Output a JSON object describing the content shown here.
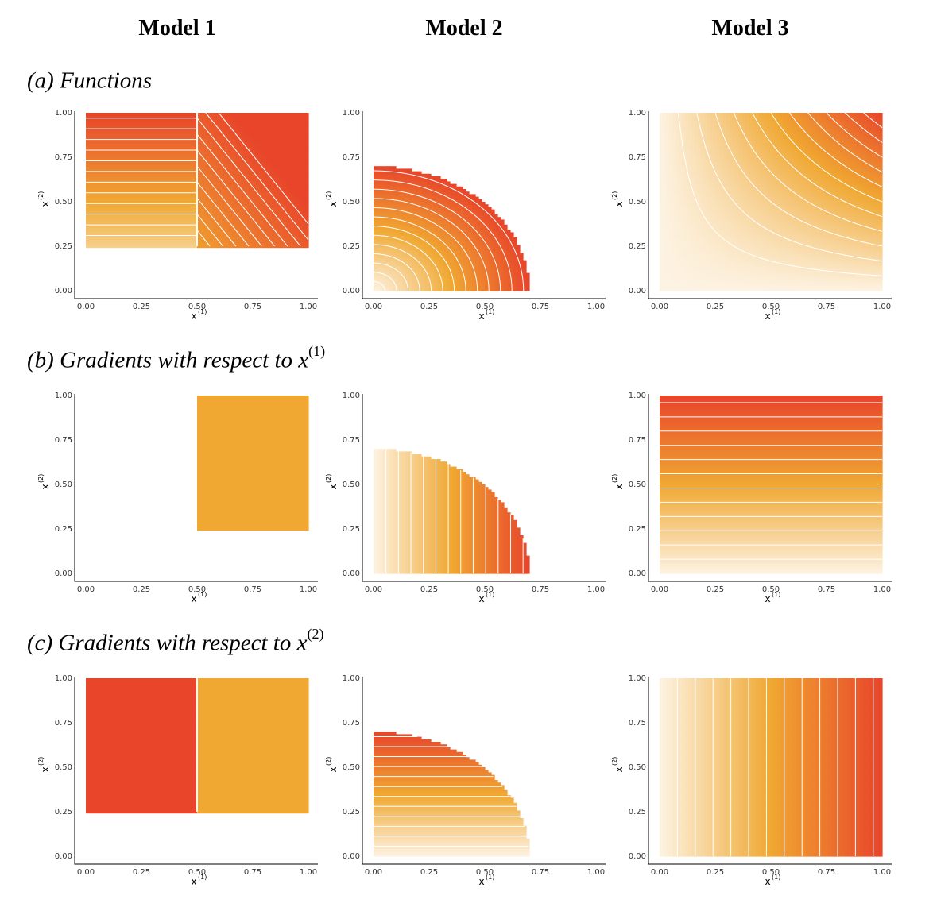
{
  "headers": {
    "col1": "Model 1",
    "col2": "Model 2",
    "col3": "Model 3"
  },
  "rows": {
    "a": {
      "text": "(a) Functions",
      "sup": ""
    },
    "b": {
      "text": "(b) Gradients with respect to x",
      "sup": "(1)"
    },
    "c": {
      "text": "(c) Gradients with respect to x",
      "sup": "(2)"
    }
  },
  "axes": {
    "xlabel": "x",
    "xlabel_sup": "(1)",
    "ylabel": "x",
    "ylabel_sup": "(2)",
    "ticks": [
      "0.00",
      "0.25",
      "0.50",
      "0.75",
      "1.00"
    ]
  },
  "colors": {
    "low": "#fdf3e3",
    "mid": "#f0a832",
    "high": "#e8452a",
    "contour": "#ffffff"
  },
  "chart_data": [
    {
      "id": "a1",
      "type": "heatmap",
      "model": "Model 1",
      "row": "(a) Functions",
      "xlim": [
        0,
        1
      ],
      "ylim": [
        0,
        1
      ],
      "domain": "x(2) >= 0.25",
      "pattern": "left-half-horizontal-bands-right-half-diagonal-bands",
      "contours": true
    },
    {
      "id": "a2",
      "type": "heatmap",
      "model": "Model 2",
      "row": "(a) Functions",
      "xlim": [
        0,
        1
      ],
      "ylim": [
        0,
        1
      ],
      "domain": "quarter-disc radius 0.7",
      "pattern": "radial",
      "contours": true
    },
    {
      "id": "a3",
      "type": "heatmap",
      "model": "Model 3",
      "row": "(a) Functions",
      "xlim": [
        0,
        1
      ],
      "ylim": [
        0,
        1
      ],
      "domain": "full",
      "pattern": "product",
      "contours": true
    },
    {
      "id": "b1",
      "type": "heatmap",
      "model": "Model 1",
      "row": "(b) Gradients with respect to x(1)",
      "xlim": [
        0,
        1
      ],
      "ylim": [
        0,
        1
      ],
      "domain": "x(1) >= 0.5 and x(2) >= 0.25",
      "pattern": "constant",
      "contours": false
    },
    {
      "id": "b2",
      "type": "heatmap",
      "model": "Model 2",
      "row": "(b) Gradients with respect to x(1)",
      "xlim": [
        0,
        1
      ],
      "ylim": [
        0,
        1
      ],
      "domain": "quarter-disc radius 0.7",
      "pattern": "vertical-bands",
      "contours": true
    },
    {
      "id": "b3",
      "type": "heatmap",
      "model": "Model 3",
      "row": "(b) Gradients with respect to x(1)",
      "xlim": [
        0,
        1
      ],
      "ylim": [
        0,
        1
      ],
      "domain": "full",
      "pattern": "horizontal-bands",
      "contours": true
    },
    {
      "id": "c1",
      "type": "heatmap",
      "model": "Model 1",
      "row": "(c) Gradients with respect to x(2)",
      "xlim": [
        0,
        1
      ],
      "ylim": [
        0,
        1
      ],
      "domain": "x(2) >= 0.25",
      "pattern": "two-blocks-split-at-0.5",
      "contours": false
    },
    {
      "id": "c2",
      "type": "heatmap",
      "model": "Model 2",
      "row": "(c) Gradients with respect to x(2)",
      "xlim": [
        0,
        1
      ],
      "ylim": [
        0,
        1
      ],
      "domain": "quarter-disc radius 0.7",
      "pattern": "horizontal-bands",
      "contours": true
    },
    {
      "id": "c3",
      "type": "heatmap",
      "model": "Model 3",
      "row": "(c) Gradients with respect to x(2)",
      "xlim": [
        0,
        1
      ],
      "ylim": [
        0,
        1
      ],
      "domain": "full",
      "pattern": "vertical-bands",
      "contours": true
    }
  ]
}
